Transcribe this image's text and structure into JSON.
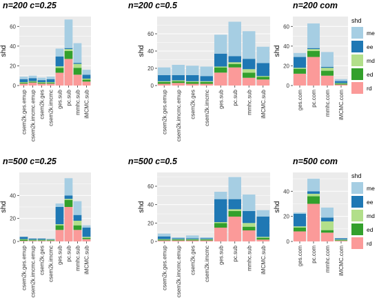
{
  "chart_data": [
    {
      "type": "bar",
      "title": "n=200 c=0.25",
      "ylabel": "shd",
      "ylim": [
        0,
        70
      ],
      "yticks": [
        0,
        20,
        40,
        60
      ],
      "categories": [
        "csem2k.ges.emup",
        "csem2k.imcmc.emup",
        "csem2k.ges",
        "csem2k.imcmc",
        "ges.sub",
        "pc.sub",
        "mmhc.sub",
        "iMCMC.sub"
      ],
      "stack_order": [
        "rd",
        "ed",
        "md",
        "ee",
        "me"
      ],
      "series": [
        {
          "name": "rd",
          "values": [
            2,
            3,
            2,
            2,
            13,
            27,
            11,
            4
          ]
        },
        {
          "name": "ed",
          "values": [
            1,
            1,
            1,
            1,
            5,
            8,
            7,
            2
          ]
        },
        {
          "name": "md",
          "values": [
            0.5,
            0.5,
            0.5,
            0.5,
            1.5,
            2,
            4,
            1
          ]
        },
        {
          "name": "ee",
          "values": [
            3,
            3,
            2,
            3,
            10,
            1,
            1,
            4
          ]
        },
        {
          "name": "me",
          "values": [
            2.5,
            2.5,
            2.5,
            2.5,
            8,
            29,
            20,
            5
          ]
        }
      ]
    },
    {
      "type": "bar",
      "title": "n=200 c=0.5",
      "ylabel": "shd",
      "ylim": [
        0,
        80
      ],
      "yticks": [
        0,
        20,
        40,
        60
      ],
      "categories": [
        "csem2k.ges.emup",
        "csem2k.imcmc.emup",
        "csem2k.ges",
        "csem2k.imcmc",
        "ges.sub",
        "pc.sub",
        "mmhc.sub",
        "iMCMC.sub"
      ],
      "stack_order": [
        "rd",
        "ed",
        "md",
        "ee",
        "me"
      ],
      "series": [
        {
          "name": "rd",
          "values": [
            2,
            3,
            2,
            2,
            15,
            21,
            9,
            7
          ]
        },
        {
          "name": "ed",
          "values": [
            2,
            2,
            2,
            2,
            6,
            4,
            6,
            3
          ]
        },
        {
          "name": "md",
          "values": [
            1,
            1,
            1,
            1,
            1,
            2,
            4,
            1
          ]
        },
        {
          "name": "ee",
          "values": [
            7,
            6,
            7,
            6,
            15,
            7,
            12,
            15
          ]
        },
        {
          "name": "me",
          "values": [
            9,
            12,
            11,
            11,
            22,
            40,
            32,
            19
          ]
        }
      ]
    },
    {
      "type": "bar",
      "title": "n=200 com",
      "ylabel": "shd",
      "ylim": [
        0,
        70
      ],
      "yticks": [
        0,
        20,
        40,
        60
      ],
      "categories": [
        "ges.com",
        "pc.com",
        "mmhc.com",
        "iMCMC.com"
      ],
      "stack_order": [
        "rd",
        "ed",
        "md",
        "ee",
        "me"
      ],
      "series": [
        {
          "name": "rd",
          "values": [
            12,
            29,
            10,
            1
          ]
        },
        {
          "name": "ed",
          "values": [
            5,
            6,
            5,
            1
          ]
        },
        {
          "name": "md",
          "values": [
            1,
            2,
            3,
            0.5
          ]
        },
        {
          "name": "ee",
          "values": [
            11,
            1,
            1,
            2
          ]
        },
        {
          "name": "me",
          "values": [
            4,
            25,
            15,
            2
          ]
        }
      ]
    },
    {
      "type": "bar",
      "title": "n=500 c=0.25",
      "ylabel": "shd",
      "ylim": [
        0,
        60
      ],
      "yticks": [
        0,
        20,
        40
      ],
      "categories": [
        "csem2k.ges.emup",
        "csem2k.imcmc.emup",
        "csem2k.ges",
        "csem2k.imcmc",
        "ges.sub",
        "pc.sub",
        "mmhc.sub",
        "iMCMC.sub"
      ],
      "stack_order": [
        "rd",
        "ed",
        "md",
        "ee",
        "me"
      ],
      "series": [
        {
          "name": "rd",
          "values": [
            0.5,
            0.5,
            0.5,
            0.5,
            10,
            30,
            10,
            2
          ]
        },
        {
          "name": "ed",
          "values": [
            1,
            0.5,
            0.5,
            0.5,
            4,
            6,
            4,
            1
          ]
        },
        {
          "name": "md",
          "values": [
            0.5,
            0.5,
            0.5,
            0.5,
            1,
            1,
            4,
            1
          ]
        },
        {
          "name": "ee",
          "values": [
            2,
            1,
            1,
            0.5,
            15,
            3,
            5,
            8
          ]
        },
        {
          "name": "me",
          "values": [
            0,
            0,
            0,
            0,
            3,
            15,
            12,
            2
          ]
        }
      ]
    },
    {
      "type": "bar",
      "title": "n=500 c=0.5",
      "ylabel": "shd",
      "ylim": [
        0,
        75
      ],
      "yticks": [
        0,
        20,
        40,
        60
      ],
      "categories": [
        "csem2k.ges.emup",
        "csem2k.imcmc.emup",
        "csem2k.ges",
        "csem2k.imcmc",
        "ges.sub",
        "pc.sub",
        "mmhc.sub",
        "iMCMC.sub"
      ],
      "stack_order": [
        "rd",
        "ed",
        "md",
        "ee",
        "me"
      ],
      "series": [
        {
          "name": "rd",
          "values": [
            1,
            1,
            1,
            1,
            15,
            27,
            12,
            2
          ]
        },
        {
          "name": "ed",
          "values": [
            1,
            1,
            1,
            1,
            5,
            6,
            4,
            2
          ]
        },
        {
          "name": "md",
          "values": [
            0.5,
            0.5,
            0.5,
            0.5,
            1,
            2,
            4,
            1
          ]
        },
        {
          "name": "ee",
          "values": [
            3,
            1,
            1,
            1,
            25,
            11,
            13,
            22
          ]
        },
        {
          "name": "me",
          "values": [
            3,
            1,
            3,
            1,
            8,
            24,
            18,
            7
          ]
        }
      ]
    },
    {
      "type": "bar",
      "title": "n=500 com",
      "ylabel": "shd",
      "ylim": [
        0,
        55
      ],
      "yticks": [
        0,
        20,
        40
      ],
      "categories": [
        "ges.com",
        "pc.com",
        "mmhc.com",
        "iMCMC.com"
      ],
      "stack_order": [
        "rd",
        "ed",
        "md",
        "ee",
        "me"
      ],
      "series": [
        {
          "name": "rd",
          "values": [
            8,
            30,
            7,
            0.5
          ]
        },
        {
          "name": "ed",
          "values": [
            3,
            6,
            2,
            0.5
          ]
        },
        {
          "name": "md",
          "values": [
            1,
            2,
            7,
            0.5
          ]
        },
        {
          "name": "ee",
          "values": [
            10,
            2,
            3,
            1
          ]
        },
        {
          "name": "me",
          "values": [
            1,
            10,
            8,
            0
          ]
        }
      ]
    }
  ],
  "legends": [
    {
      "title": "shd",
      "items": [
        {
          "label": "me",
          "color": "#a6cee3"
        },
        {
          "label": "ee",
          "color": "#1f78b4"
        },
        {
          "label": "md",
          "color": "#b2df8a"
        },
        {
          "label": "ed",
          "color": "#33a02c"
        },
        {
          "label": "rd",
          "color": "#fb9a99"
        }
      ]
    },
    {
      "title": "shd",
      "items": [
        {
          "label": "me",
          "color": "#a6cee3"
        },
        {
          "label": "ee",
          "color": "#1f78b4"
        },
        {
          "label": "md",
          "color": "#b2df8a"
        },
        {
          "label": "ed",
          "color": "#33a02c"
        },
        {
          "label": "rd",
          "color": "#fb9a99"
        }
      ]
    }
  ],
  "colors": {
    "rd": "#fb9a99",
    "ed": "#33a02c",
    "md": "#b2df8a",
    "ee": "#1f78b4",
    "me": "#a6cee3",
    "panel_bg": "#ebebeb",
    "grid": "#ffffff"
  }
}
